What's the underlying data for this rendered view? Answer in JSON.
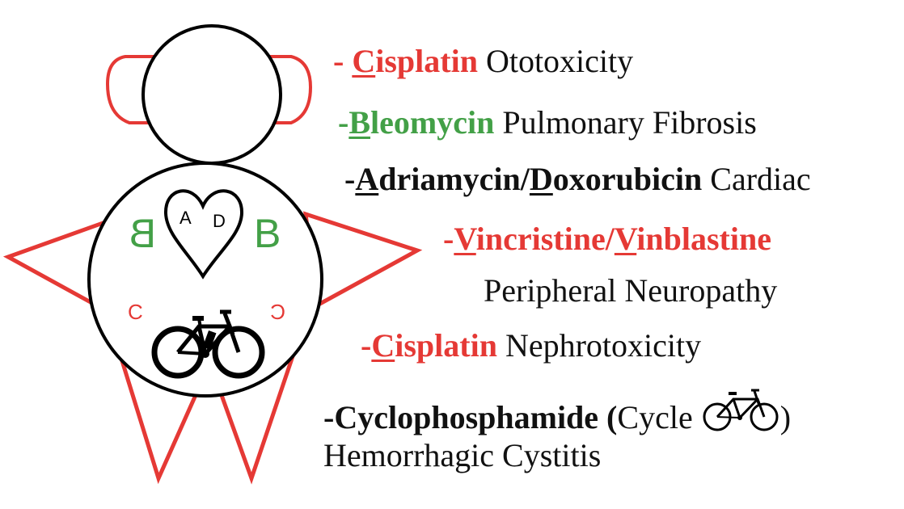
{
  "colors": {
    "red": "#e53935",
    "green": "#43a047",
    "black": "#111111"
  },
  "figure": {
    "heart_letters": [
      "A",
      "D"
    ],
    "bleomycin_letters": [
      "B",
      "B"
    ],
    "cisplatin_letters": [
      "C",
      "C"
    ],
    "bicycle_icon": "bicycle-icon"
  },
  "list": {
    "l1": {
      "prefix": "- ",
      "initial": "C",
      "rest": "isplatin",
      "effect": " Ototoxicity"
    },
    "l2": {
      "prefix": "-",
      "initial": "B",
      "rest": "leomycin",
      "effect": " Pulmonary Fibrosis"
    },
    "l3": {
      "prefix": "-",
      "initial1": "A",
      "rest1": "driamycin/",
      "initial2": "D",
      "rest2": "oxorubicin",
      "effect": " Cardiac"
    },
    "l4": {
      "prefix": "-",
      "initial1": "V",
      "rest1": "incristine/",
      "initial2": "V",
      "rest2": "inblastine",
      "effect": "Peripheral Neuropathy"
    },
    "l5": {
      "prefix": "-",
      "initial": "C",
      "rest": "isplatin",
      "effect": " Nephrotoxicity"
    },
    "l6": {
      "drug": "-Cyclophosphamide (",
      "cycle": "Cycle ",
      "close": ")",
      "effect": "Hemorrhagic Cystitis"
    }
  }
}
